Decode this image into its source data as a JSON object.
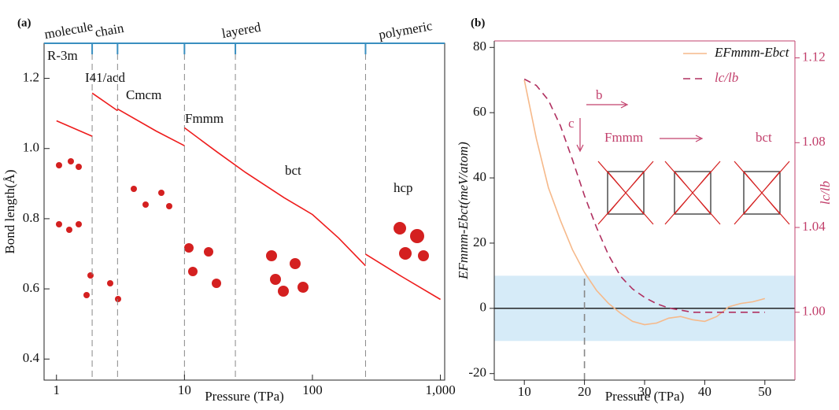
{
  "chart_data": [
    {
      "type": "line",
      "panel_label": "(a)",
      "x_label": "Pressure (TPa)",
      "y_label": "Bond length(Å)",
      "log_x": true,
      "xlim": [
        0.8,
        1080
      ],
      "ylim": [
        0.34,
        1.3
      ],
      "xticks": [
        1,
        10,
        100,
        {
          "value": 1000,
          "label": "1,000"
        }
      ],
      "yticks": [
        0.4,
        0.6,
        0.8,
        {
          "value": 1.0,
          "label": "1.0"
        },
        1.2
      ],
      "phase_boundaries": [
        1.9,
        3,
        10,
        25,
        260
      ],
      "regions": [
        "molecule",
        "chain",
        "layered",
        "polymeric"
      ],
      "phases": [
        "R-3m",
        "I41/acd",
        "Cmcm",
        "Fmmm",
        "bct",
        "hcp"
      ],
      "top_axis_color": "#3a8fc0",
      "series": [
        {
          "color": "#ee1c1c",
          "x": [
            1,
            1.9,
            1.9,
            1.9,
            3,
            3,
            3,
            6,
            10,
            10,
            10,
            18,
            30,
            60,
            100,
            160,
            260,
            260,
            260,
            500,
            1000
          ],
          "values": [
            1.079,
            1.035,
            null,
            1.158,
            1.108,
            null,
            1.113,
            1.05,
            1.008,
            null,
            1.059,
            0.99,
            0.932,
            0.86,
            0.812,
            0.745,
            0.666,
            null,
            0.699,
            0.635,
            0.57
          ]
        }
      ]
    },
    {
      "type": "line",
      "panel_label": "(b)",
      "x_label": "Pressure (TPa)",
      "y_label": "EFmmm-Ebct(meV/atom)",
      "y2_label": "lc/lb",
      "xlim": [
        5,
        55
      ],
      "ylim": [
        -22,
        82
      ],
      "y2lim": [
        0.968,
        1.128
      ],
      "xticks": [
        10,
        20,
        30,
        40,
        50
      ],
      "yticks": [
        -20,
        0,
        20,
        40,
        60,
        80
      ],
      "y2ticks": [
        {
          "value": 1.0,
          "label": "1.00"
        },
        1.04,
        1.08,
        1.12
      ],
      "band": [
        -10,
        10
      ],
      "band_color": "#d6ebf8",
      "zero_line": 0,
      "reference_x": 20,
      "annotations": [
        "b",
        "c",
        "Fmmm",
        "bct"
      ],
      "axis_color": "#c2406c",
      "series": [
        {
          "name": "EFmmm-Ebct",
          "color": "#f6b98a",
          "dashed": false,
          "x": [
            10,
            12,
            14,
            16,
            18,
            20,
            22,
            24,
            26,
            28,
            30,
            32,
            34,
            36,
            38,
            40,
            42,
            44,
            46,
            48,
            50
          ],
          "values": [
            70,
            52,
            37,
            27,
            18,
            11,
            5.5,
            1.5,
            -1.5,
            -4,
            -5,
            -4.5,
            -3,
            -2.5,
            -3.5,
            -4,
            -2.5,
            0.5,
            1.5,
            2,
            3
          ]
        },
        {
          "name": "lc/lb",
          "color": "#b03060",
          "dashed": true,
          "axis": "y2",
          "x": [
            10,
            12,
            14,
            16,
            18,
            20,
            22,
            24,
            26,
            28,
            30,
            32,
            34,
            36,
            38,
            40,
            45,
            50
          ],
          "values": [
            1.11,
            1.107,
            1.1,
            1.088,
            1.072,
            1.055,
            1.04,
            1.027,
            1.017,
            1.011,
            1.007,
            1.004,
            1.002,
            1.001,
            1.0,
            1.0,
            1.0,
            1.0
          ]
        }
      ]
    }
  ]
}
